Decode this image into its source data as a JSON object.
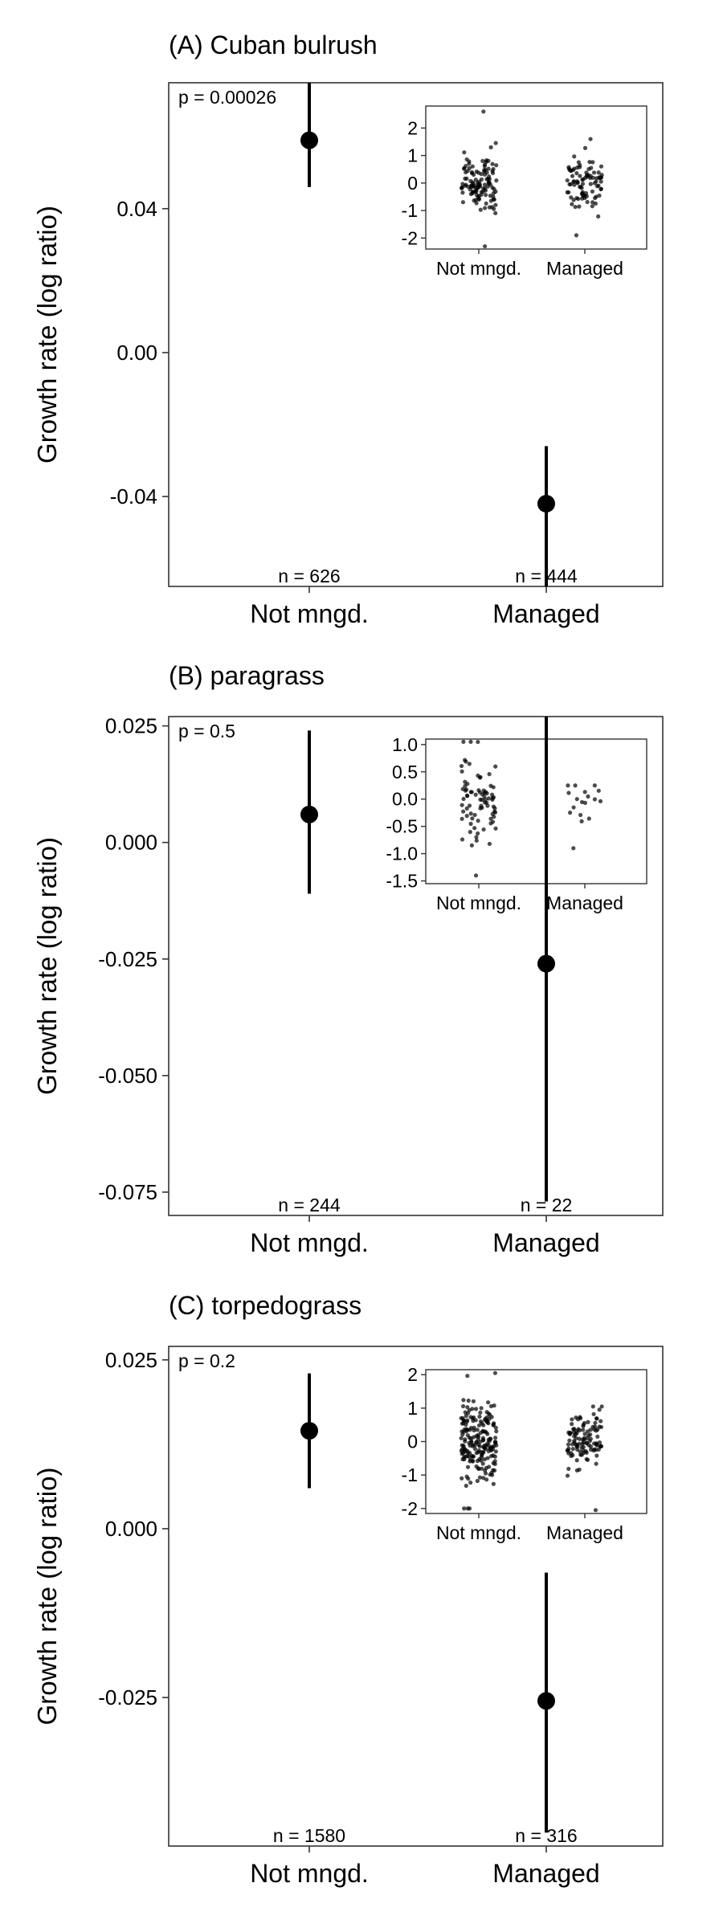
{
  "chart_data": [
    {
      "type": "scatter",
      "title": "(A) Cuban bulrush",
      "ylabel": "Growth rate (log ratio)",
      "xlabel": "",
      "categories": [
        "Not mngd.",
        "Managed"
      ],
      "yticks": [
        0.04,
        0.0,
        -0.04
      ],
      "ytick_labels": [
        "0.04",
        "0.00",
        "-0.04"
      ],
      "ylim": [
        -0.065,
        0.075
      ],
      "grid": false,
      "annotation": "p = 0.00026",
      "points": [
        {
          "category": "Not mngd.",
          "mean": 0.059,
          "lower": 0.046,
          "upper": 0.075
        },
        {
          "category": "Managed",
          "mean": -0.042,
          "lower": -0.065,
          "upper": -0.026
        }
      ],
      "n_labels": [
        "n = 626",
        "n = 444"
      ],
      "inset": {
        "type": "scatter",
        "categories": [
          "Not mngd.",
          "Managed"
        ],
        "yticks": [
          2,
          1,
          0,
          -1,
          -2
        ],
        "ytick_labels": [
          "2",
          "1",
          "0",
          "-1",
          "-2"
        ],
        "ylim": [
          -2.4,
          2.8
        ],
        "series": [
          {
            "category": "Not mngd.",
            "count": 120,
            "spread": 0.55,
            "range": [
              -2.3,
              2.6
            ]
          },
          {
            "category": "Managed",
            "count": 90,
            "spread": 0.5,
            "range": [
              -1.9,
              1.6
            ]
          }
        ]
      }
    },
    {
      "type": "scatter",
      "title": "(B) paragrass",
      "ylabel": "Growth rate (log ratio)",
      "xlabel": "",
      "categories": [
        "Not mngd.",
        "Managed"
      ],
      "yticks": [
        0.025,
        0.0,
        -0.025,
        -0.05,
        -0.075
      ],
      "ytick_labels": [
        "0.025",
        "0.000",
        "-0.025",
        "-0.050",
        "-0.075"
      ],
      "ylim": [
        -0.08,
        0.027
      ],
      "grid": false,
      "annotation": "p = 0.5",
      "points": [
        {
          "category": "Not mngd.",
          "mean": 0.006,
          "lower": -0.011,
          "upper": 0.024
        },
        {
          "category": "Managed",
          "mean": -0.026,
          "lower": -0.077,
          "upper": 0.027
        }
      ],
      "n_labels": [
        "n = 244",
        "n = 22"
      ],
      "inset": {
        "type": "scatter",
        "categories": [
          "Not mngd.",
          "Managed"
        ],
        "yticks": [
          1.0,
          0.5,
          0.0,
          -0.5,
          -1.0,
          -1.5
        ],
        "ytick_labels": [
          "1.0",
          "0.5",
          "0.0",
          "-0.5",
          "-1.0",
          "-1.5"
        ],
        "ylim": [
          -1.55,
          1.1
        ],
        "series": [
          {
            "category": "Not mngd.",
            "count": 80,
            "spread": 0.35,
            "range": [
              -1.4,
              1.05
            ]
          },
          {
            "category": "Managed",
            "count": 18,
            "spread": 0.2,
            "range": [
              -0.9,
              0.25
            ]
          }
        ]
      }
    },
    {
      "type": "scatter",
      "title": "(C) torpedograss",
      "ylabel": "Growth rate (log ratio)",
      "xlabel": "",
      "categories": [
        "Not mngd.",
        "Managed"
      ],
      "yticks": [
        0.025,
        0.0,
        -0.025
      ],
      "ytick_labels": [
        "0.025",
        "0.000",
        "-0.025"
      ],
      "ylim": [
        -0.047,
        0.027
      ],
      "grid": false,
      "annotation": "p = 0.2",
      "points": [
        {
          "category": "Not mngd.",
          "mean": 0.0145,
          "lower": 0.006,
          "upper": 0.023
        },
        {
          "category": "Managed",
          "mean": -0.0255,
          "lower": -0.045,
          "upper": -0.0065
        }
      ],
      "n_labels": [
        "n = 1580",
        "n = 316"
      ],
      "inset": {
        "type": "scatter",
        "categories": [
          "Not mngd.",
          "Managed"
        ],
        "yticks": [
          2,
          1,
          0,
          -1,
          -2
        ],
        "ytick_labels": [
          "2",
          "1",
          "0",
          "-1",
          "-2"
        ],
        "ylim": [
          -2.15,
          2.15
        ],
        "series": [
          {
            "category": "Not mngd.",
            "count": 200,
            "spread": 0.6,
            "range": [
              -2.0,
              2.05
            ]
          },
          {
            "category": "Managed",
            "count": 110,
            "spread": 0.45,
            "range": [
              -2.05,
              1.05
            ]
          }
        ]
      }
    }
  ]
}
